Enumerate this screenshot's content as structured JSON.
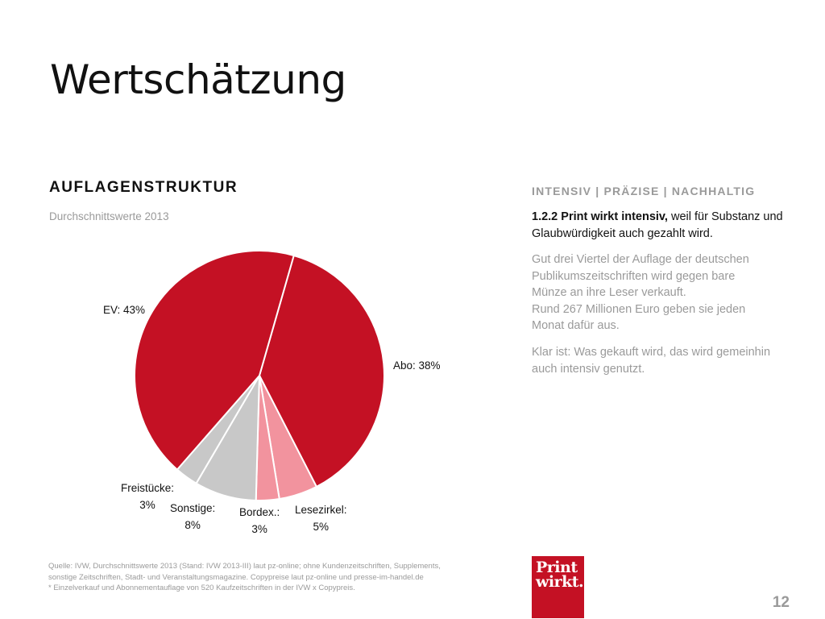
{
  "slide": {
    "title": "Wertschätzung",
    "page_number": "12"
  },
  "chart_data": {
    "type": "pie",
    "title": "AUFLAGENSTRUKTUR",
    "subtitle": "Durchschnittswerte 2013",
    "slices": [
      {
        "label": "Abo: 38%",
        "name": "Abo",
        "value": 38,
        "color": "#c41124"
      },
      {
        "label": "Lesezirkel: 5%",
        "name": "Lesezirkel",
        "value": 5,
        "color": "#f2939e"
      },
      {
        "label": "Bordex.: 3%",
        "name": "Bordex.",
        "value": 3,
        "color": "#f2939e"
      },
      {
        "label": "Sonstige: 8%",
        "name": "Sonstige",
        "value": 8,
        "color": "#c8c8c8"
      },
      {
        "label": "Freistücke: 3%",
        "name": "Freistücke",
        "value": 3,
        "color": "#c8c8c8"
      },
      {
        "label": "EV: 43%",
        "name": "EV",
        "value": 43,
        "color": "#c41124"
      }
    ],
    "label_lines": {
      "ev": [
        "EV: 43%"
      ],
      "abo": [
        "Abo: 38%"
      ],
      "freistuecke": [
        "Freistücke:",
        "3%"
      ],
      "sonstige": [
        "Sonstige:",
        "8%"
      ],
      "bordex": [
        "Bordex.:",
        "3%"
      ],
      "lesezirkel": [
        "Lesezirkel:",
        "5%"
      ]
    }
  },
  "side": {
    "heading": "INTENSIV | PRÄZISE | NACHHALTIG",
    "lead_bold": "1.2.2 Print wirkt intensiv,",
    "lead_rest": " weil für Substanz und Glaubwürdigkeit auch gezahlt wird.",
    "paragraph1": [
      "Gut drei Viertel der Auflage der deutschen",
      "Publikumszeitschriften wird gegen bare",
      "Münze an ihre Leser verkauft.",
      "Rund 267 Millionen Euro geben sie jeden",
      "Monat dafür aus."
    ],
    "paragraph2": [
      "Klar ist: Was gekauft wird, das wird gemeinhin",
      "auch intensiv genutzt."
    ]
  },
  "source": {
    "lines": [
      "Quelle: IVW, Durchschnittswerte 2013 (Stand: IVW 2013-III) laut pz-online; ohne Kundenzeitschriften, Supplements,",
      "sonstige Zeitschriften, Stadt- und Veranstaltungsmagazine. Copypreise laut pz-online und presse-im-handel.de",
      "* Einzelverkauf und Abonnementauflage von 520 Kaufzeitschriften in der IVW x Copypreis."
    ]
  },
  "logo": {
    "line1": "Print",
    "line2": "wirkt.",
    "color": "#c41124"
  }
}
